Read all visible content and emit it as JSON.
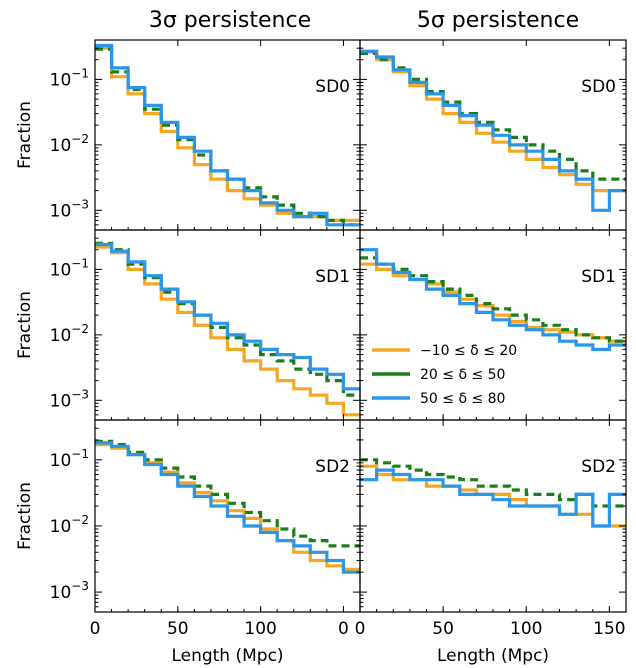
{
  "column_titles": [
    "3σ persistence",
    "5σ persistence"
  ],
  "row_labels": [
    "SD0",
    "SD1",
    "SD2"
  ],
  "colors": {
    "orange": "#f5a623",
    "green": "#1a7f1a",
    "blue": "#2b95ea"
  },
  "legend": [
    {
      "label": "−10 ≤ δ ≤ 20",
      "color": "#f5a623"
    },
    {
      "label": "20 ≤ δ ≤ 50",
      "color": "#1a7f1a"
    },
    {
      "label": "50 ≤ δ ≤ 80",
      "color": "#2b95ea"
    }
  ],
  "chart_data": [
    {
      "type": "line",
      "panel": "3σ persistence / SD0",
      "xlabel": "",
      "ylabel": "Fraction",
      "xlim": [
        0,
        160
      ],
      "ylim": [
        0.0005,
        0.4
      ],
      "yscale": "log",
      "step": true,
      "series": [
        {
          "name": "−10 ≤ δ ≤ 20",
          "color": "#f5a623",
          "x": [
            5,
            15,
            25,
            35,
            45,
            55,
            65,
            75,
            85,
            95,
            105,
            115,
            125,
            135,
            145,
            155
          ],
          "y": [
            0.3,
            0.11,
            0.06,
            0.03,
            0.016,
            0.009,
            0.005,
            0.003,
            0.002,
            0.0015,
            0.0012,
            0.0009,
            0.0008,
            0.0008,
            0.0007,
            0.0007
          ]
        },
        {
          "name": "20 ≤ δ ≤ 50",
          "color": "#1a7f1a",
          "x": [
            5,
            15,
            25,
            35,
            45,
            55,
            65,
            75,
            85,
            95,
            105,
            115,
            125,
            135,
            145,
            155
          ],
          "y": [
            0.29,
            0.13,
            0.07,
            0.035,
            0.02,
            0.012,
            0.007,
            0.004,
            0.003,
            0.0022,
            0.0016,
            0.0012,
            0.0009,
            0.0008,
            0.0007,
            0.0006
          ]
        },
        {
          "name": "50 ≤ δ ≤ 80",
          "color": "#2b95ea",
          "x": [
            5,
            15,
            25,
            35,
            45,
            55,
            65,
            75,
            85,
            95,
            105,
            115,
            125,
            135,
            145,
            155
          ],
          "y": [
            0.33,
            0.15,
            0.075,
            0.04,
            0.022,
            0.013,
            0.008,
            0.004,
            0.003,
            0.002,
            0.0013,
            0.001,
            0.0008,
            0.0009,
            0.0006,
            0.0006
          ]
        }
      ]
    },
    {
      "type": "line",
      "panel": "5σ persistence / SD0",
      "xlabel": "",
      "ylabel": "",
      "xlim": [
        0,
        160
      ],
      "ylim": [
        0.0005,
        0.4
      ],
      "yscale": "log",
      "step": true,
      "series": [
        {
          "name": "−10 ≤ δ ≤ 20",
          "color": "#f5a623",
          "x": [
            5,
            15,
            25,
            35,
            45,
            55,
            65,
            75,
            85,
            95,
            105,
            115,
            125,
            135,
            145,
            155
          ],
          "y": [
            0.26,
            0.2,
            0.13,
            0.08,
            0.05,
            0.03,
            0.022,
            0.015,
            0.011,
            0.008,
            0.006,
            0.0045,
            0.0035,
            0.0025,
            0.002,
            0.002
          ]
        },
        {
          "name": "20 ≤ δ ≤ 50",
          "color": "#1a7f1a",
          "x": [
            5,
            15,
            25,
            35,
            45,
            55,
            65,
            75,
            85,
            95,
            105,
            115,
            125,
            135,
            145,
            155
          ],
          "y": [
            0.25,
            0.2,
            0.15,
            0.1,
            0.065,
            0.045,
            0.03,
            0.022,
            0.017,
            0.013,
            0.01,
            0.008,
            0.006,
            0.004,
            0.003,
            0.003
          ]
        },
        {
          "name": "50 ≤ δ ≤ 80",
          "color": "#2b95ea",
          "x": [
            5,
            15,
            25,
            35,
            45,
            55,
            65,
            75,
            85,
            95,
            105,
            115,
            125,
            135,
            145,
            155
          ],
          "y": [
            0.27,
            0.22,
            0.14,
            0.09,
            0.06,
            0.04,
            0.028,
            0.02,
            0.014,
            0.01,
            0.008,
            0.006,
            0.004,
            0.003,
            0.001,
            0.002
          ]
        }
      ]
    },
    {
      "type": "line",
      "panel": "3σ persistence / SD1",
      "xlabel": "",
      "ylabel": "Fraction",
      "xlim": [
        0,
        160
      ],
      "ylim": [
        0.0005,
        0.4
      ],
      "yscale": "log",
      "step": true,
      "series": [
        {
          "name": "−10 ≤ δ ≤ 20",
          "color": "#f5a623",
          "x": [
            5,
            15,
            25,
            35,
            45,
            55,
            65,
            75,
            85,
            95,
            105,
            115,
            125,
            135,
            145,
            155
          ],
          "y": [
            0.22,
            0.18,
            0.1,
            0.06,
            0.035,
            0.022,
            0.014,
            0.009,
            0.006,
            0.004,
            0.003,
            0.002,
            0.0015,
            0.0012,
            0.0009,
            0.0006
          ]
        },
        {
          "name": "20 ≤ δ ≤ 50",
          "color": "#1a7f1a",
          "x": [
            5,
            15,
            25,
            35,
            45,
            55,
            65,
            75,
            85,
            95,
            105,
            115,
            125,
            135,
            145,
            155
          ],
          "y": [
            0.25,
            0.2,
            0.12,
            0.075,
            0.045,
            0.03,
            0.02,
            0.013,
            0.009,
            0.007,
            0.005,
            0.004,
            0.003,
            0.0025,
            0.002,
            0.0012
          ]
        },
        {
          "name": "50 ≤ δ ≤ 80",
          "color": "#2b95ea",
          "x": [
            5,
            15,
            25,
            35,
            45,
            55,
            65,
            75,
            85,
            95,
            105,
            115,
            125,
            135,
            145,
            155
          ],
          "y": [
            0.24,
            0.19,
            0.13,
            0.08,
            0.05,
            0.032,
            0.02,
            0.015,
            0.01,
            0.008,
            0.006,
            0.005,
            0.0045,
            0.003,
            0.0025,
            0.0015
          ]
        }
      ]
    },
    {
      "type": "line",
      "panel": "5σ persistence / SD1",
      "xlabel": "",
      "ylabel": "",
      "xlim": [
        0,
        160
      ],
      "ylim": [
        0.0005,
        0.4
      ],
      "yscale": "log",
      "step": true,
      "series": [
        {
          "name": "−10 ≤ δ ≤ 20",
          "color": "#f5a623",
          "x": [
            5,
            15,
            25,
            35,
            45,
            55,
            65,
            75,
            85,
            95,
            105,
            115,
            125,
            135,
            145,
            155
          ],
          "y": [
            0.12,
            0.1,
            0.08,
            0.07,
            0.06,
            0.045,
            0.035,
            0.028,
            0.02,
            0.016,
            0.013,
            0.012,
            0.011,
            0.01,
            0.009,
            0.008
          ]
        },
        {
          "name": "20 ≤ δ ≤ 50",
          "color": "#1a7f1a",
          "x": [
            5,
            15,
            25,
            35,
            45,
            55,
            65,
            75,
            85,
            95,
            105,
            115,
            125,
            135,
            145,
            155
          ],
          "y": [
            0.15,
            0.12,
            0.1,
            0.08,
            0.065,
            0.05,
            0.04,
            0.03,
            0.025,
            0.02,
            0.017,
            0.014,
            0.012,
            0.01,
            0.009,
            0.008
          ]
        },
        {
          "name": "50 ≤ δ ≤ 80",
          "color": "#2b95ea",
          "x": [
            5,
            15,
            25,
            35,
            45,
            55,
            65,
            75,
            85,
            95,
            105,
            115,
            125,
            135,
            145,
            155
          ],
          "y": [
            0.2,
            0.12,
            0.09,
            0.07,
            0.05,
            0.04,
            0.03,
            0.022,
            0.017,
            0.014,
            0.012,
            0.01,
            0.008,
            0.007,
            0.006,
            0.007
          ]
        }
      ]
    },
    {
      "type": "line",
      "panel": "3σ persistence / SD2",
      "xlabel": "Length (Mpc)",
      "ylabel": "Fraction",
      "xlim": [
        0,
        160
      ],
      "ylim": [
        0.0005,
        0.4
      ],
      "yscale": "log",
      "step": true,
      "series": [
        {
          "name": "−10 ≤ δ ≤ 20",
          "color": "#f5a623",
          "x": [
            5,
            15,
            25,
            35,
            45,
            55,
            65,
            75,
            85,
            95,
            105,
            115,
            125,
            135,
            145,
            155
          ],
          "y": [
            0.17,
            0.15,
            0.12,
            0.09,
            0.065,
            0.045,
            0.032,
            0.024,
            0.017,
            0.013,
            0.009,
            0.006,
            0.004,
            0.003,
            0.0025,
            0.0022
          ]
        },
        {
          "name": "20 ≤ δ ≤ 50",
          "color": "#1a7f1a",
          "x": [
            5,
            15,
            25,
            35,
            45,
            55,
            65,
            75,
            85,
            95,
            105,
            115,
            125,
            135,
            145,
            155
          ],
          "y": [
            0.19,
            0.17,
            0.13,
            0.1,
            0.075,
            0.055,
            0.04,
            0.03,
            0.022,
            0.016,
            0.012,
            0.009,
            0.007,
            0.006,
            0.005,
            0.005
          ]
        },
        {
          "name": "50 ≤ δ ≤ 80",
          "color": "#2b95ea",
          "x": [
            5,
            15,
            25,
            35,
            45,
            55,
            65,
            75,
            85,
            95,
            105,
            115,
            125,
            135,
            145,
            155
          ],
          "y": [
            0.18,
            0.16,
            0.12,
            0.085,
            0.06,
            0.04,
            0.028,
            0.02,
            0.014,
            0.01,
            0.008,
            0.006,
            0.005,
            0.004,
            0.003,
            0.002
          ]
        }
      ]
    },
    {
      "type": "line",
      "panel": "5σ persistence / SD2",
      "xlabel": "Length (Mpc)",
      "ylabel": "",
      "xlim": [
        0,
        160
      ],
      "ylim": [
        0.0005,
        0.4
      ],
      "yscale": "log",
      "step": true,
      "series": [
        {
          "name": "−10 ≤ δ ≤ 20",
          "color": "#f5a623",
          "x": [
            5,
            15,
            25,
            35,
            45,
            55,
            65,
            75,
            85,
            95,
            105,
            115,
            125,
            135,
            145,
            155
          ],
          "y": [
            0.08,
            0.06,
            0.05,
            0.05,
            0.04,
            0.04,
            0.035,
            0.03,
            0.03,
            0.025,
            0.02,
            0.02,
            0.015,
            0.015,
            0.01,
            0.01
          ]
        },
        {
          "name": "20 ≤ δ ≤ 50",
          "color": "#1a7f1a",
          "x": [
            5,
            15,
            25,
            35,
            45,
            55,
            65,
            75,
            85,
            95,
            105,
            115,
            125,
            135,
            145,
            155
          ],
          "y": [
            0.1,
            0.09,
            0.08,
            0.07,
            0.06,
            0.055,
            0.05,
            0.04,
            0.04,
            0.035,
            0.03,
            0.03,
            0.025,
            0.03,
            0.02,
            0.02
          ]
        },
        {
          "name": "50 ≤ δ ≤ 80",
          "color": "#2b95ea",
          "x": [
            5,
            15,
            25,
            35,
            45,
            55,
            65,
            75,
            85,
            95,
            105,
            115,
            125,
            135,
            145,
            155
          ],
          "y": [
            0.05,
            0.07,
            0.06,
            0.05,
            0.05,
            0.04,
            0.03,
            0.03,
            0.025,
            0.02,
            0.02,
            0.02,
            0.015,
            0.03,
            0.01,
            0.03
          ]
        }
      ]
    }
  ]
}
